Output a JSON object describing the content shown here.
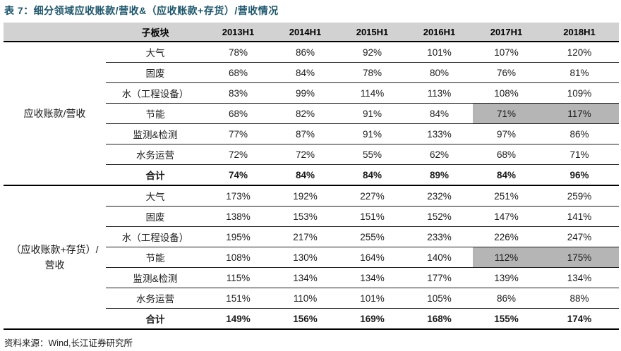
{
  "title": "表 7：细分领域应收账款/营收&（应收账款+存货）/营收情况",
  "source": "资料来源：Wind,长江证券研究所",
  "colors": {
    "title": "#1d566b",
    "header_bg": "#d2d2d2",
    "highlight_bg": "#b5b5b5",
    "rule": "#000000"
  },
  "chart_data": {
    "type": "table",
    "columns": [
      "子板块",
      "2013H1",
      "2014H1",
      "2015H1",
      "2016H1",
      "2017H1",
      "2018H1"
    ],
    "groups": [
      {
        "label": "应收账款/营收",
        "rows": [
          {
            "name": "大气",
            "values": [
              "78%",
              "86%",
              "92%",
              "101%",
              "107%",
              "120%"
            ]
          },
          {
            "name": "固废",
            "values": [
              "68%",
              "84%",
              "78%",
              "80%",
              "76%",
              "81%"
            ]
          },
          {
            "name": "水（工程设备）",
            "values": [
              "83%",
              "99%",
              "114%",
              "113%",
              "108%",
              "109%"
            ]
          },
          {
            "name": "节能",
            "values": [
              "68%",
              "82%",
              "91%",
              "84%",
              "71%",
              "117%"
            ],
            "highlight_cols": [
              4,
              5
            ]
          },
          {
            "name": "监测&检测",
            "values": [
              "77%",
              "87%",
              "91%",
              "133%",
              "97%",
              "86%"
            ]
          },
          {
            "name": "水务运营",
            "values": [
              "72%",
              "72%",
              "55%",
              "62%",
              "68%",
              "71%"
            ]
          },
          {
            "name": "合计",
            "values": [
              "74%",
              "84%",
              "84%",
              "89%",
              "84%",
              "96%"
            ],
            "bold": true
          }
        ]
      },
      {
        "label": "（应收账款+存货）/营收",
        "rows": [
          {
            "name": "大气",
            "values": [
              "173%",
              "192%",
              "227%",
              "232%",
              "251%",
              "259%"
            ]
          },
          {
            "name": "固废",
            "values": [
              "138%",
              "153%",
              "151%",
              "152%",
              "147%",
              "141%"
            ]
          },
          {
            "name": "水（工程设备）",
            "values": [
              "195%",
              "217%",
              "255%",
              "233%",
              "226%",
              "247%"
            ]
          },
          {
            "name": "节能",
            "values": [
              "108%",
              "130%",
              "164%",
              "140%",
              "112%",
              "175%"
            ],
            "highlight_cols": [
              4,
              5
            ]
          },
          {
            "name": "监测&检测",
            "values": [
              "115%",
              "134%",
              "134%",
              "177%",
              "139%",
              "134%"
            ]
          },
          {
            "name": "水务运营",
            "values": [
              "151%",
              "110%",
              "101%",
              "105%",
              "86%",
              "88%"
            ]
          },
          {
            "name": "合计",
            "values": [
              "149%",
              "156%",
              "169%",
              "168%",
              "155%",
              "174%"
            ],
            "bold": true
          }
        ]
      }
    ]
  }
}
